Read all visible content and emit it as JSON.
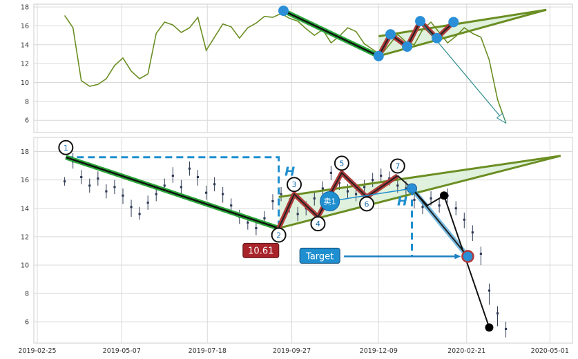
{
  "chart_data": [
    {
      "type": "line",
      "panel": "top",
      "ylim": [
        4.7,
        18.3
      ],
      "yticks": [
        "6",
        "8",
        "10",
        "12",
        "14",
        "16",
        "18"
      ],
      "ytick_values": [
        6,
        8,
        10,
        12,
        14,
        16,
        18
      ],
      "grid": true,
      "line_color": "#6b8e23",
      "series": [
        {
          "x": [
            "2019-03-20",
            "2019-03-27",
            "2019-04-03",
            "2019-04-10",
            "2019-04-17",
            "2019-04-24",
            "2019-05-01",
            "2019-05-08",
            "2019-05-15",
            "2019-05-22",
            "2019-05-29",
            "2019-06-05",
            "2019-06-12",
            "2019-06-19",
            "2019-06-26",
            "2019-07-03",
            "2019-07-10",
            "2019-07-17",
            "2019-07-24",
            "2019-07-31",
            "2019-08-07",
            "2019-08-14",
            "2019-08-21",
            "2019-08-28",
            "2019-09-04",
            "2019-09-11",
            "2019-09-18",
            "2019-09-25",
            "2019-10-02",
            "2019-10-09",
            "2019-10-16",
            "2019-10-23",
            "2019-10-30",
            "2019-11-06",
            "2019-11-13",
            "2019-11-20",
            "2019-11-27",
            "2019-12-04",
            "2019-12-11",
            "2019-12-18",
            "2019-12-25",
            "2020-01-01",
            "2020-01-08",
            "2020-01-15",
            "2020-01-22",
            "2020-01-29",
            "2020-02-05",
            "2020-02-12",
            "2020-02-19",
            "2020-02-26",
            "2020-03-04",
            "2020-03-11",
            "2020-03-18",
            "2020-03-25"
          ],
          "values": [
            17.1,
            15.8,
            10.2,
            9.6,
            9.8,
            10.4,
            11.8,
            12.6,
            11.2,
            10.4,
            10.9,
            15.2,
            16.4,
            16.1,
            15.3,
            15.8,
            16.9,
            13.4,
            14.8,
            16.2,
            15.9,
            14.7,
            15.8,
            16.3,
            17.0,
            16.9,
            17.3,
            16.8,
            16.5,
            15.7,
            15.0,
            15.6,
            14.2,
            14.9,
            15.8,
            15.4,
            14.1,
            13.5,
            12.9,
            14.0,
            15.1,
            14.3,
            14.0,
            15.6,
            16.4,
            15.3,
            14.2,
            14.9,
            15.8,
            15.2,
            14.8,
            12.4,
            8.2,
            5.7
          ]
        }
      ],
      "pattern": {
        "points": [
          {
            "x": "2019-09-20",
            "y": 17.6
          },
          {
            "x": "2019-12-09",
            "y": 12.8
          },
          {
            "x": "2019-12-19",
            "y": 15.1
          },
          {
            "x": "2020-01-02",
            "y": 13.8
          },
          {
            "x": "2020-01-13",
            "y": 16.5
          },
          {
            "x": "2020-01-27",
            "y": 14.7
          },
          {
            "x": "2020-02-10",
            "y": 16.4
          }
        ],
        "target_arrow": {
          "from": {
            "x": "2020-01-13",
            "y": 16.5
          },
          "to": {
            "x": "2020-03-25",
            "y": 5.7
          }
        },
        "upper_line": {
          "from": {
            "x": "2019-12-09",
            "y": 14.9
          },
          "to": {
            "x": "2020-04-28",
            "y": 17.7
          }
        },
        "lower_line": {
          "from": {
            "x": "2019-12-09",
            "y": 12.8
          },
          "to": {
            "x": "2020-04-28",
            "y": 17.7
          }
        }
      }
    },
    {
      "type": "candlestick",
      "panel": "bottom",
      "ylim": [
        4.5,
        19.0
      ],
      "yticks": [
        "6",
        "8",
        "10",
        "12",
        "14",
        "16",
        "18"
      ],
      "ytick_values": [
        6,
        8,
        10,
        12,
        14,
        16,
        18
      ],
      "xlim": [
        "2019-02-25",
        "2020-05-20"
      ],
      "xticks": [
        "2019-02-25",
        "2019-05-07",
        "2019-07-18",
        "2019-09-27",
        "2019-12-09",
        "2020-02-21",
        "2020-05-01"
      ],
      "grid": true,
      "bar_color": "#2e3a55",
      "series": [
        {
          "x": [
            "2019-03-20",
            "2019-03-27",
            "2019-04-03",
            "2019-04-10",
            "2019-04-17",
            "2019-04-24",
            "2019-05-01",
            "2019-05-08",
            "2019-05-15",
            "2019-05-22",
            "2019-05-29",
            "2019-06-05",
            "2019-06-12",
            "2019-06-19",
            "2019-06-26",
            "2019-07-03",
            "2019-07-10",
            "2019-07-17",
            "2019-07-24",
            "2019-07-31",
            "2019-08-07",
            "2019-08-14",
            "2019-08-21",
            "2019-08-28",
            "2019-09-04",
            "2019-09-11",
            "2019-09-18",
            "2019-09-25",
            "2019-10-02",
            "2019-10-09",
            "2019-10-16",
            "2019-10-23",
            "2019-10-30",
            "2019-11-06",
            "2019-11-13",
            "2019-11-20",
            "2019-11-27",
            "2019-12-04",
            "2019-12-11",
            "2019-12-18",
            "2019-12-25",
            "2020-01-01",
            "2020-01-08",
            "2020-01-15",
            "2020-01-22",
            "2020-01-29",
            "2020-02-05",
            "2020-02-12",
            "2020-02-19",
            "2020-02-26",
            "2020-03-04",
            "2020-03-11",
            "2020-03-18",
            "2020-03-25"
          ],
          "values": [
            15.9,
            17.3,
            16.2,
            15.6,
            16.1,
            15.2,
            15.5,
            14.9,
            14.1,
            13.6,
            14.4,
            15.0,
            15.6,
            16.3,
            15.5,
            16.8,
            16.2,
            15.1,
            15.7,
            15.0,
            14.2,
            13.4,
            13.0,
            12.6,
            13.3,
            14.5,
            15.0,
            14.2,
            13.6,
            14.0,
            14.7,
            15.4,
            16.5,
            15.8,
            15.2,
            15.0,
            15.5,
            16.0,
            16.3,
            16.1,
            15.6,
            15.4,
            14.6,
            14.1,
            14.7,
            14.2,
            14.9,
            14.0,
            13.2,
            12.3,
            10.8,
            8.2,
            6.6,
            5.5
          ],
          "low": [
            15.6,
            16.8,
            15.7,
            15.1,
            15.6,
            14.7,
            15.0,
            14.3,
            13.4,
            13.2,
            13.9,
            14.5,
            15.1,
            15.8,
            15.0,
            16.3,
            15.6,
            14.6,
            15.2,
            14.4,
            13.6,
            12.9,
            12.5,
            12.1,
            12.8,
            13.9,
            14.5,
            13.7,
            13.1,
            13.5,
            14.2,
            14.9,
            16.0,
            15.3,
            14.7,
            14.5,
            15.0,
            15.5,
            15.8,
            15.6,
            15.1,
            14.9,
            14.0,
            13.6,
            14.2,
            13.7,
            14.4,
            13.5,
            12.6,
            11.7,
            10.0,
            7.2,
            5.7,
            4.9
          ],
          "high": [
            16.2,
            17.9,
            16.7,
            16.1,
            16.6,
            15.7,
            16.0,
            15.4,
            14.6,
            14.1,
            14.9,
            15.5,
            16.1,
            16.9,
            16.0,
            17.3,
            16.7,
            15.6,
            16.2,
            15.5,
            14.7,
            13.9,
            13.5,
            13.1,
            13.8,
            15.0,
            15.5,
            14.7,
            14.1,
            14.5,
            15.2,
            15.9,
            17.0,
            16.3,
            15.7,
            15.5,
            16.0,
            16.5,
            16.8,
            16.6,
            16.1,
            15.9,
            15.1,
            14.6,
            15.2,
            14.7,
            15.4,
            14.5,
            13.7,
            12.8,
            11.3,
            8.7,
            7.1,
            6.0
          ]
        }
      ],
      "pattern": {
        "points": [
          {
            "label": "1",
            "x": "2019-03-21",
            "y": 17.6
          },
          {
            "label": "2",
            "x": "2019-09-16",
            "y": 12.6
          },
          {
            "label": "3",
            "x": "2019-09-29",
            "y": 15.0
          },
          {
            "label": "4",
            "x": "2019-10-19",
            "y": 13.4
          },
          {
            "label": "5",
            "x": "2019-11-08",
            "y": 16.5
          },
          {
            "label": "6",
            "x": "2019-11-29",
            "y": 14.8
          },
          {
            "label": "7",
            "x": "2019-12-25",
            "y": 16.3
          }
        ],
        "upper_line": {
          "from": {
            "x": "2019-09-16",
            "y": 14.8
          },
          "to": {
            "x": "2020-05-10",
            "y": 17.7
          }
        },
        "lower_line": {
          "from": {
            "x": "2019-09-16",
            "y": 12.6
          },
          "to": {
            "x": "2020-05-10",
            "y": 17.7
          }
        },
        "sell_point": {
          "label": "卖1",
          "x": "2020-01-06",
          "y": 15.4
        },
        "breakout_drop": [
          {
            "x": "2020-01-06",
            "y": 15.4
          },
          {
            "x": "2020-01-19",
            "y": 14.2
          },
          {
            "x": "2020-02-02",
            "y": 14.9
          },
          {
            "x": "2020-02-22",
            "y": 10.6
          },
          {
            "x": "2020-03-11",
            "y": 5.6
          }
        ],
        "target_value": 10.61,
        "h_label": "H",
        "value_box": "10.61",
        "target_box": "Target"
      }
    }
  ]
}
